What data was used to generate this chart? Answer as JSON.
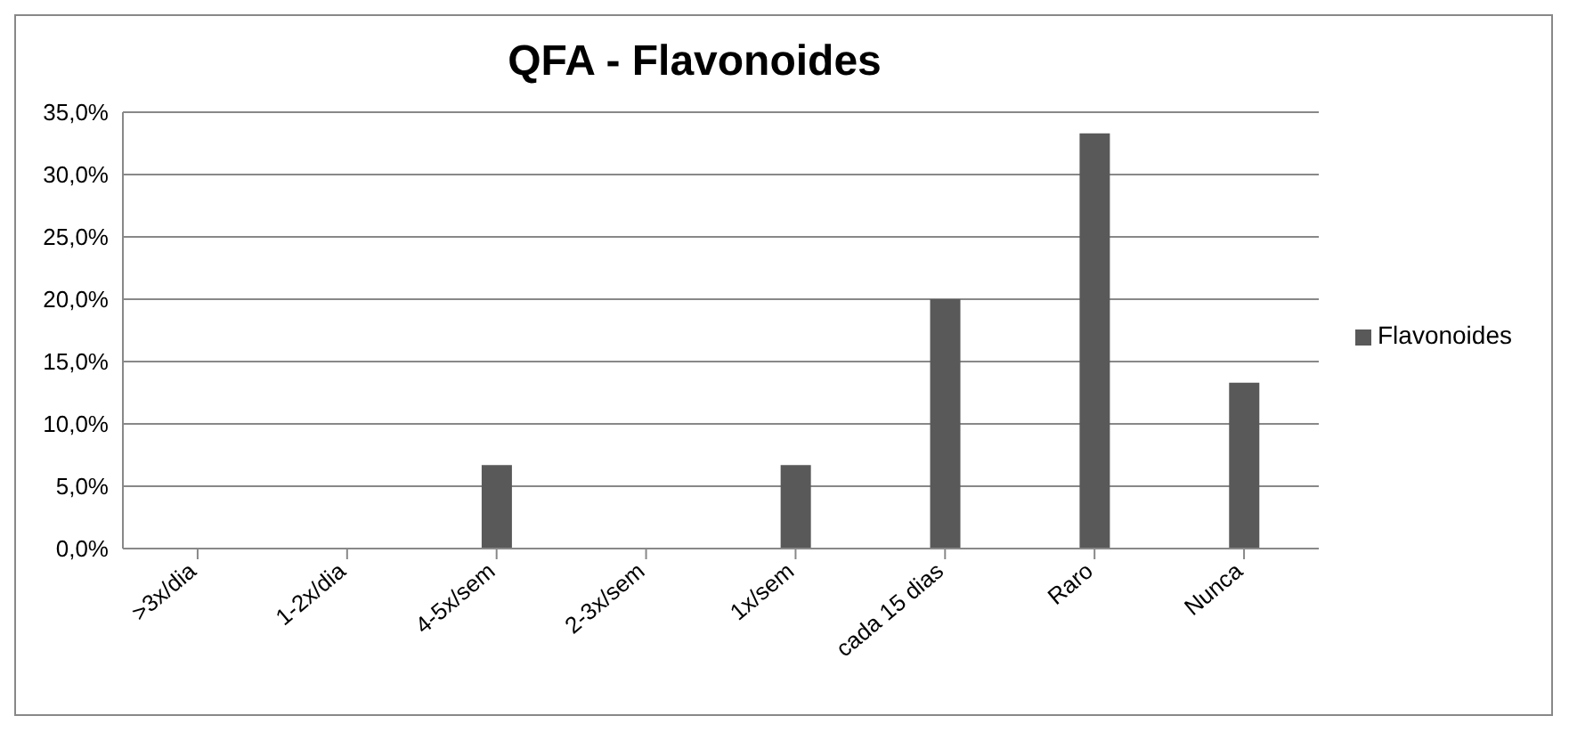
{
  "chart_data": {
    "type": "bar",
    "title": "QFA - Flavonoides",
    "categories": [
      ">3x/dia",
      "1-2x/dia",
      "4-5x/sem",
      "2-3x/sem",
      "1x/sem",
      "cada 15 dias",
      "Raro",
      "Nunca"
    ],
    "series": [
      {
        "name": "Flavonoides",
        "color": "#595959",
        "values": [
          0,
          0,
          6.7,
          0,
          6.7,
          20,
          33.3,
          13.3
        ]
      }
    ],
    "ylim": [
      0,
      35
    ],
    "yticks": [
      {
        "value": 0,
        "label": "0,0%"
      },
      {
        "value": 5,
        "label": "5,0%"
      },
      {
        "value": 10,
        "label": "10,0%"
      },
      {
        "value": 15,
        "label": "15,0%"
      },
      {
        "value": 20,
        "label": "20,0%"
      },
      {
        "value": 25,
        "label": "25,0%"
      },
      {
        "value": 30,
        "label": "30,0%"
      },
      {
        "value": 35,
        "label": "35,0%"
      }
    ],
    "grid": "y",
    "legend": "right"
  }
}
